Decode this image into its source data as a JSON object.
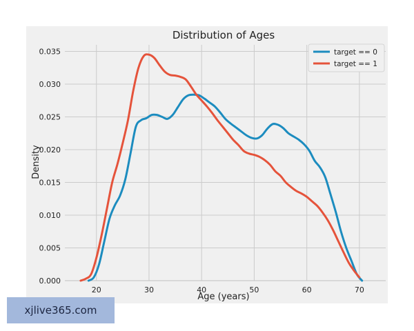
{
  "chart_data": {
    "type": "line",
    "title": "Distribution of Ages",
    "xlabel": "Age (years)",
    "ylabel": "Density",
    "xlim": [
      14,
      75
    ],
    "ylim": [
      0,
      0.036
    ],
    "x_ticks": [
      20,
      30,
      40,
      50,
      60,
      70
    ],
    "x_tick_labels": [
      "20",
      "30",
      "40",
      "50",
      "60",
      "70"
    ],
    "y_ticks": [
      0,
      0.005,
      0.01,
      0.015,
      0.02,
      0.025,
      0.03,
      0.035
    ],
    "y_tick_labels": [
      "0.000",
      "0.005",
      "0.010",
      "0.015",
      "0.020",
      "0.025",
      "0.030",
      "0.035"
    ],
    "grid": true,
    "legend_position": "top-right",
    "series": [
      {
        "name": "target == 0",
        "color": "#1c8cbf",
        "x": [
          18.5,
          19.5,
          20.5,
          21.5,
          22.5,
          23.5,
          24.5,
          25.5,
          26.5,
          27.5,
          28.5,
          29.5,
          30.5,
          31.5,
          32.5,
          33.5,
          34.5,
          35.5,
          36.5,
          37.5,
          38.5,
          39.5,
          40.5,
          41.5,
          42.5,
          43.5,
          44.5,
          45.5,
          46.5,
          47.5,
          48.5,
          49.5,
          50.5,
          51.5,
          52.5,
          53.5,
          54.5,
          55.5,
          56.5,
          57.5,
          58.5,
          59.5,
          60.5,
          61.5,
          62.5,
          63.5,
          64.5,
          65.5,
          66.5,
          67.5,
          68.5,
          69.5,
          70.5
        ],
        "y": [
          0.0,
          0.0005,
          0.0025,
          0.006,
          0.0095,
          0.0115,
          0.013,
          0.0155,
          0.0195,
          0.0235,
          0.0245,
          0.0248,
          0.0253,
          0.0253,
          0.025,
          0.0247,
          0.0253,
          0.0265,
          0.0277,
          0.0283,
          0.0284,
          0.0283,
          0.0278,
          0.0272,
          0.0266,
          0.0257,
          0.0247,
          0.024,
          0.0234,
          0.0228,
          0.0222,
          0.0218,
          0.0217,
          0.0222,
          0.0232,
          0.0239,
          0.0238,
          0.0233,
          0.0225,
          0.022,
          0.0215,
          0.0208,
          0.0198,
          0.0183,
          0.0173,
          0.0158,
          0.0132,
          0.0105,
          0.0075,
          0.005,
          0.003,
          0.001,
          0.0
        ]
      },
      {
        "name": "target == 1",
        "color": "#e5533b",
        "x": [
          17.0,
          18.0,
          19.0,
          20.0,
          21.0,
          22.0,
          23.0,
          24.0,
          25.0,
          26.0,
          27.0,
          28.0,
          29.0,
          30.0,
          31.0,
          32.0,
          33.0,
          34.0,
          35.0,
          36.0,
          37.0,
          38.0,
          39.0,
          40.0,
          41.0,
          42.0,
          43.0,
          44.0,
          45.0,
          46.0,
          47.0,
          48.0,
          49.0,
          50.0,
          51.0,
          52.0,
          53.0,
          54.0,
          55.0,
          56.0,
          57.0,
          58.0,
          59.0,
          60.0,
          61.0,
          62.0,
          63.0,
          64.0,
          65.0,
          66.0,
          67.0,
          68.0,
          69.0,
          70.0
        ],
        "y": [
          0.0,
          0.0003,
          0.001,
          0.0035,
          0.007,
          0.011,
          0.015,
          0.0178,
          0.021,
          0.0245,
          0.029,
          0.0325,
          0.0343,
          0.0345,
          0.034,
          0.0329,
          0.0319,
          0.0314,
          0.0313,
          0.0311,
          0.0307,
          0.0296,
          0.0284,
          0.0275,
          0.0266,
          0.0256,
          0.0245,
          0.0235,
          0.0225,
          0.0215,
          0.0207,
          0.0198,
          0.0194,
          0.0192,
          0.0189,
          0.0184,
          0.0177,
          0.0167,
          0.016,
          0.015,
          0.0143,
          0.0137,
          0.0133,
          0.0128,
          0.0121,
          0.0114,
          0.0104,
          0.0092,
          0.0077,
          0.006,
          0.0043,
          0.0027,
          0.0015,
          0.0005
        ]
      }
    ]
  },
  "watermark": {
    "text": "xjlive365.com"
  }
}
